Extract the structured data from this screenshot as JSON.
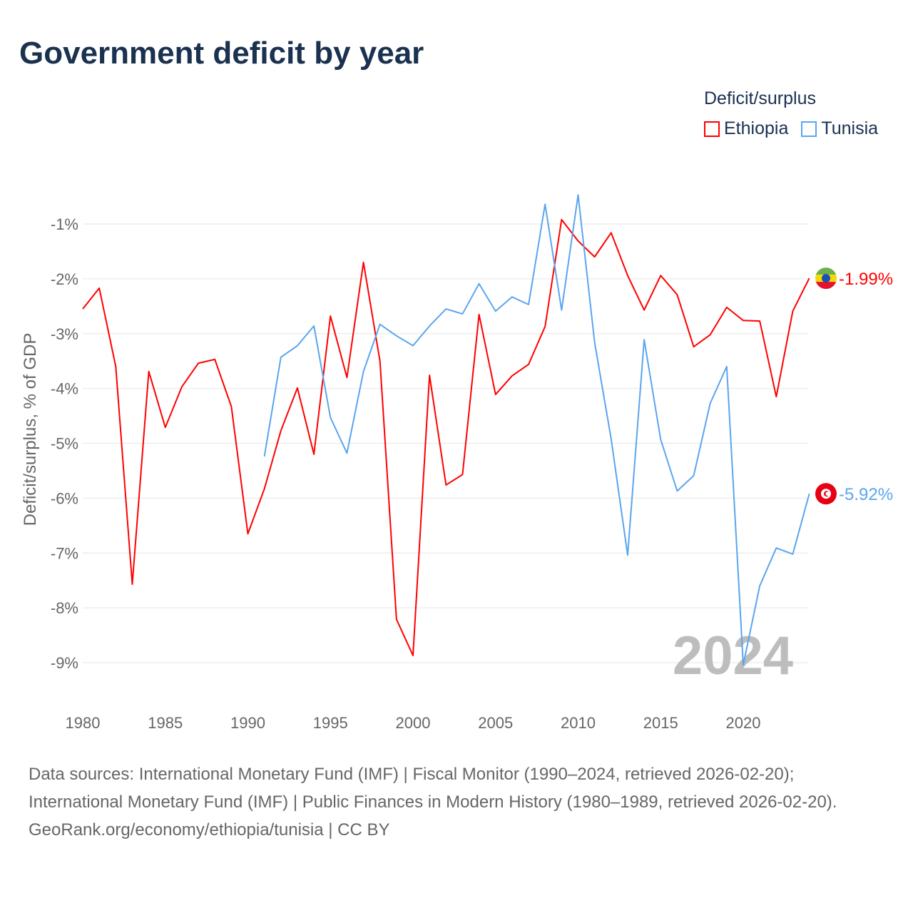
{
  "title": "Government deficit by year",
  "legend": {
    "title": "Deficit/surplus",
    "items": [
      {
        "label": "Ethiopia",
        "color": "#ff0000"
      },
      {
        "label": "Tunisia",
        "color": "#5aa5ef"
      }
    ]
  },
  "footer": {
    "sources": "Data sources: International Monetary Fund (IMF) | Fiscal Monitor (1990–2024, retrieved 2026-02-20); International Monetary Fund (IMF) | Public Finances in Modern History (1980–1989, retrieved 2026-02-20).",
    "credit": "GeoRank.org/economy/ethiopia/tunisia | CC BY"
  },
  "chart_data": {
    "type": "line",
    "title": "Government deficit by year",
    "xlabel": "",
    "ylabel": "Deficit/surplus, % of GDP",
    "xlim": [
      1980,
      2024
    ],
    "ylim": [
      -9.8,
      0
    ],
    "x_ticks": [
      1980,
      1985,
      1990,
      1995,
      2000,
      2005,
      2010,
      2015,
      2020
    ],
    "y_ticks": [
      -1,
      -2,
      -3,
      -4,
      -5,
      -6,
      -7,
      -8,
      -9
    ],
    "y_tick_labels": [
      "-1%",
      "-2%",
      "-3%",
      "-4%",
      "-5%",
      "-6%",
      "-7%",
      "-8%",
      "-9%"
    ],
    "watermark_year": "2024",
    "series": [
      {
        "name": "Ethiopia",
        "color": "#ff0000",
        "end_label": "-1.99%",
        "start_year": 1980,
        "values": [
          -2.55,
          -2.17,
          -3.6,
          -7.57,
          -3.69,
          -4.71,
          -3.97,
          -3.54,
          -3.47,
          -4.33,
          -6.65,
          -5.83,
          -4.77,
          -3.99,
          -5.2,
          -2.68,
          -3.8,
          -1.7,
          -3.5,
          -8.21,
          -8.87,
          -3.76,
          -5.76,
          -5.57,
          -2.65,
          -4.11,
          -3.77,
          -3.56,
          -2.87,
          -0.92,
          -1.31,
          -1.6,
          -1.16,
          -1.94,
          -2.57,
          -1.94,
          -2.29,
          -3.24,
          -3.02,
          -2.52,
          -2.76,
          -2.77,
          -4.15,
          -2.59,
          -1.99
        ]
      },
      {
        "name": "Tunisia",
        "color": "#5aa5ef",
        "end_label": "-5.92%",
        "start_year": 1991,
        "values": [
          -5.24,
          -3.43,
          -3.22,
          -2.86,
          -4.53,
          -5.18,
          -3.69,
          -2.83,
          -3.04,
          -3.22,
          -2.86,
          -2.55,
          -2.64,
          -2.09,
          -2.59,
          -2.33,
          -2.47,
          -0.64,
          -2.57,
          -0.47,
          -3.16,
          -4.92,
          -7.04,
          -3.11,
          -4.93,
          -5.87,
          -5.59,
          -4.27,
          -3.6,
          -9.04,
          -7.6,
          -6.91,
          -7.02,
          -5.92
        ]
      }
    ]
  }
}
